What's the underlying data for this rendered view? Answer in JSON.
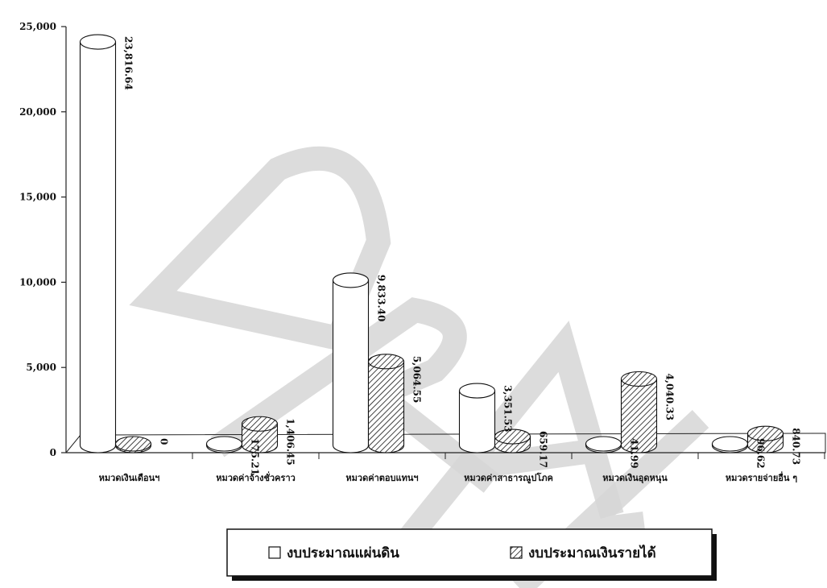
{
  "chart_data": {
    "type": "bar",
    "categories": [
      "หมวดเงินเดือนฯ",
      "หมวดค่าจ้างชั่วคราว",
      "หมวดค่าตอบแทนฯ",
      "หมวดค่าสาธารณูปโภค",
      "หมวดเงินอุดหนุน",
      "หมวดรายจ่ายอื่น ๆ"
    ],
    "series": [
      {
        "name": "งบประมาณแผ่นดิน",
        "values": [
          23816.64,
          175.21,
          9833.4,
          3351.53,
          41.99,
          96.62
        ],
        "labels": [
          "23,816.64",
          "175.21",
          "9,833.40",
          "3,351.53",
          "41.99",
          "96.62"
        ],
        "fill": "#ffffff",
        "pattern": "none"
      },
      {
        "name": "งบประมาณเงินรายได้",
        "values": [
          0,
          1406.45,
          5064.55,
          659.17,
          4040.33,
          840.73
        ],
        "labels": [
          "0",
          "1,406.45",
          "5,064.55",
          "659.17",
          "4,040.33",
          "840.73"
        ],
        "fill": "#ffffff",
        "pattern": "diagonal-hatch"
      }
    ],
    "yticks": [
      "0",
      "5,000",
      "10,000",
      "15,000",
      "20,000",
      "25,000"
    ],
    "ylim": [
      0,
      25000
    ],
    "title": "",
    "xlabel": "",
    "ylabel": "",
    "legend_position": "bottom-center",
    "grid": false,
    "style": "3d-cylinder",
    "watermark": "DRAFT"
  }
}
